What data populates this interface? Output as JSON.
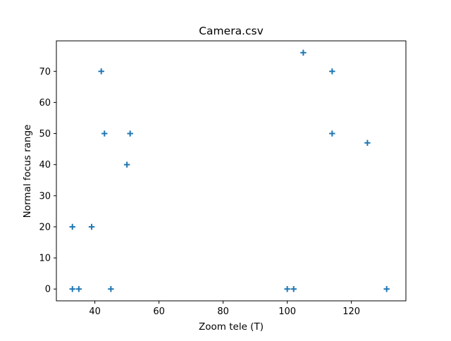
{
  "chart_data": {
    "type": "scatter",
    "title": "Camera.csv",
    "xlabel": "Zoom tele (T)",
    "ylabel": "Normal focus range",
    "xlim": [
      28,
      137
    ],
    "ylim": [
      -3.8,
      79.8
    ],
    "xticks": [
      40,
      60,
      80,
      100,
      120
    ],
    "yticks": [
      0,
      10,
      20,
      30,
      40,
      50,
      60,
      70
    ],
    "marker": "+",
    "color": "#1f77b4",
    "grid": false,
    "series": [
      {
        "points": [
          {
            "x": 33,
            "y": 0
          },
          {
            "x": 35,
            "y": 0
          },
          {
            "x": 45,
            "y": 0
          },
          {
            "x": 33,
            "y": 20
          },
          {
            "x": 39,
            "y": 20
          },
          {
            "x": 42,
            "y": 70
          },
          {
            "x": 43,
            "y": 50
          },
          {
            "x": 51,
            "y": 50
          },
          {
            "x": 50,
            "y": 40
          },
          {
            "x": 100,
            "y": 0
          },
          {
            "x": 102,
            "y": 0
          },
          {
            "x": 105,
            "y": 76
          },
          {
            "x": 114,
            "y": 70
          },
          {
            "x": 114,
            "y": 50
          },
          {
            "x": 125,
            "y": 47
          },
          {
            "x": 131,
            "y": 0
          }
        ]
      }
    ]
  }
}
